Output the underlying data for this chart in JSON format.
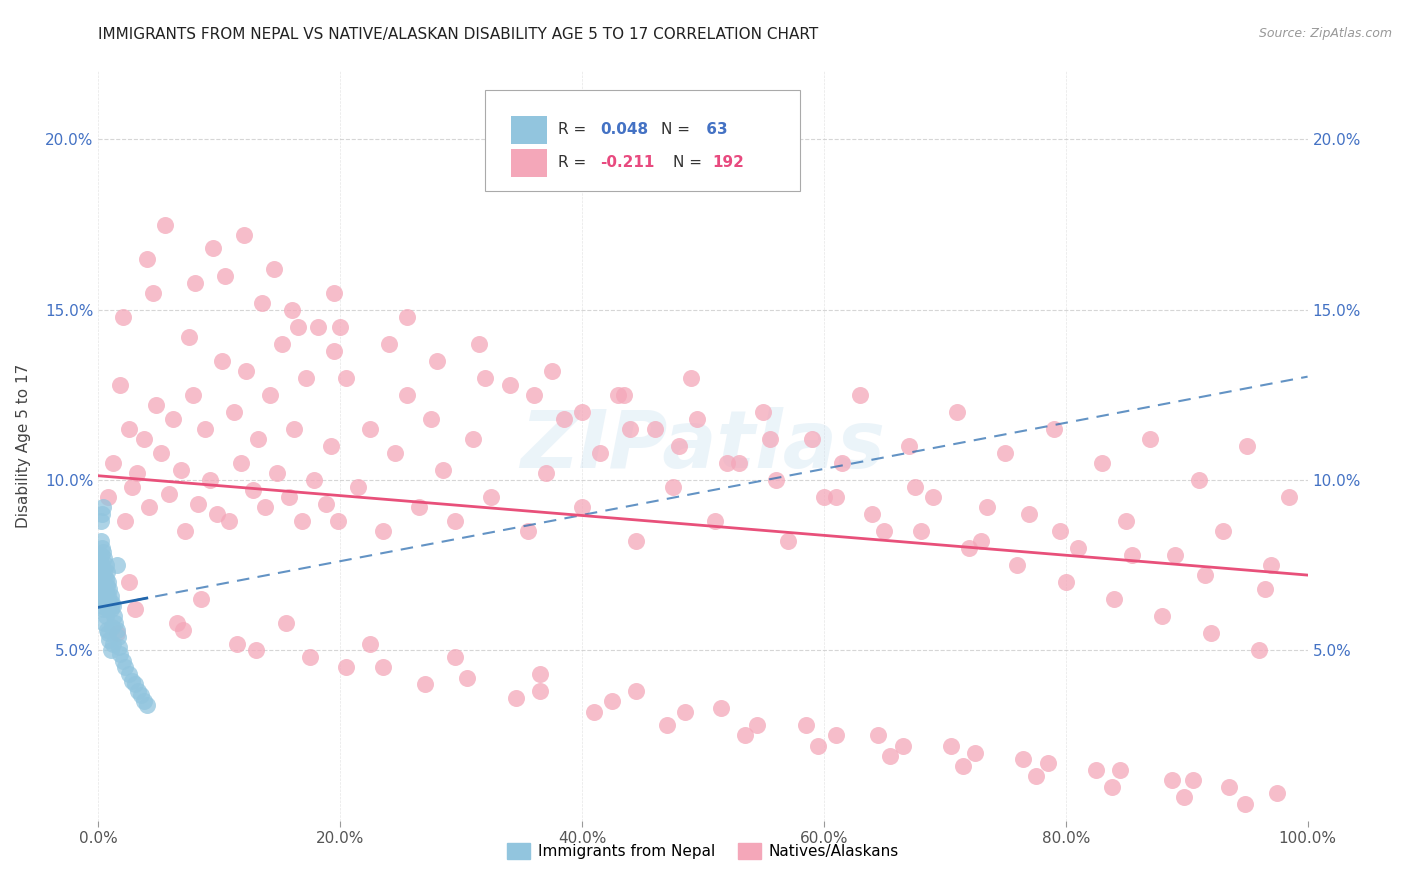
{
  "title": "IMMIGRANTS FROM NEPAL VS NATIVE/ALASKAN DISABILITY AGE 5 TO 17 CORRELATION CHART",
  "source": "Source: ZipAtlas.com",
  "ylabel": "Disability Age 5 to 17",
  "xlim": [
    0,
    1.0
  ],
  "ylim": [
    0,
    0.22
  ],
  "xticks": [
    0.0,
    0.2,
    0.4,
    0.6,
    0.8,
    1.0
  ],
  "yticks": [
    0.05,
    0.1,
    0.15,
    0.2
  ],
  "ytick_labels": [
    "5.0%",
    "10.0%",
    "15.0%",
    "20.0%"
  ],
  "xtick_labels": [
    "0.0%",
    "20.0%",
    "40.0%",
    "60.0%",
    "80.0%",
    "100.0%"
  ],
  "nepal_color": "#92C5DE",
  "native_color": "#F4A7B9",
  "nepal_line_color": "#2166AC",
  "native_line_color": "#E8507A",
  "background_color": "#FFFFFF",
  "grid_color": "#CCCCCC",
  "watermark": "ZIPatlas",
  "nepal_x": [
    0.001,
    0.001,
    0.001,
    0.002,
    0.002,
    0.002,
    0.002,
    0.003,
    0.003,
    0.003,
    0.003,
    0.003,
    0.004,
    0.004,
    0.004,
    0.004,
    0.004,
    0.005,
    0.005,
    0.005,
    0.005,
    0.005,
    0.006,
    0.006,
    0.006,
    0.006,
    0.007,
    0.007,
    0.007,
    0.007,
    0.008,
    0.008,
    0.008,
    0.008,
    0.009,
    0.009,
    0.009,
    0.01,
    0.01,
    0.01,
    0.011,
    0.011,
    0.012,
    0.012,
    0.013,
    0.014,
    0.015,
    0.016,
    0.017,
    0.018,
    0.02,
    0.022,
    0.025,
    0.028,
    0.03,
    0.033,
    0.035,
    0.038,
    0.04,
    0.002,
    0.003,
    0.004,
    0.015
  ],
  "nepal_y": [
    0.076,
    0.072,
    0.068,
    0.082,
    0.078,
    0.074,
    0.07,
    0.08,
    0.075,
    0.071,
    0.067,
    0.063,
    0.079,
    0.074,
    0.07,
    0.066,
    0.062,
    0.077,
    0.073,
    0.069,
    0.065,
    0.058,
    0.075,
    0.071,
    0.067,
    0.06,
    0.073,
    0.069,
    0.065,
    0.056,
    0.07,
    0.066,
    0.062,
    0.055,
    0.068,
    0.064,
    0.053,
    0.066,
    0.062,
    0.05,
    0.064,
    0.057,
    0.063,
    0.052,
    0.06,
    0.058,
    0.056,
    0.054,
    0.051,
    0.049,
    0.047,
    0.045,
    0.043,
    0.041,
    0.04,
    0.038,
    0.037,
    0.035,
    0.034,
    0.088,
    0.09,
    0.092,
    0.075
  ],
  "native_x": [
    0.008,
    0.012,
    0.018,
    0.022,
    0.025,
    0.028,
    0.032,
    0.038,
    0.042,
    0.048,
    0.052,
    0.058,
    0.062,
    0.068,
    0.072,
    0.078,
    0.082,
    0.088,
    0.092,
    0.098,
    0.102,
    0.108,
    0.112,
    0.118,
    0.122,
    0.128,
    0.132,
    0.138,
    0.142,
    0.148,
    0.152,
    0.158,
    0.162,
    0.168,
    0.172,
    0.178,
    0.182,
    0.188,
    0.192,
    0.198,
    0.205,
    0.215,
    0.225,
    0.235,
    0.245,
    0.255,
    0.265,
    0.275,
    0.285,
    0.295,
    0.31,
    0.325,
    0.34,
    0.355,
    0.37,
    0.385,
    0.4,
    0.415,
    0.43,
    0.445,
    0.46,
    0.475,
    0.49,
    0.51,
    0.53,
    0.55,
    0.57,
    0.59,
    0.61,
    0.63,
    0.65,
    0.67,
    0.69,
    0.71,
    0.73,
    0.75,
    0.77,
    0.79,
    0.81,
    0.83,
    0.85,
    0.87,
    0.89,
    0.91,
    0.93,
    0.95,
    0.97,
    0.985,
    0.02,
    0.045,
    0.075,
    0.105,
    0.135,
    0.165,
    0.195,
    0.04,
    0.08,
    0.12,
    0.16,
    0.2,
    0.24,
    0.28,
    0.32,
    0.36,
    0.4,
    0.44,
    0.48,
    0.52,
    0.56,
    0.6,
    0.64,
    0.68,
    0.72,
    0.76,
    0.8,
    0.84,
    0.88,
    0.92,
    0.96,
    0.055,
    0.095,
    0.145,
    0.195,
    0.255,
    0.315,
    0.375,
    0.435,
    0.495,
    0.555,
    0.615,
    0.675,
    0.735,
    0.795,
    0.855,
    0.915,
    0.965,
    0.015,
    0.065,
    0.115,
    0.175,
    0.235,
    0.305,
    0.365,
    0.425,
    0.485,
    0.545,
    0.61,
    0.665,
    0.725,
    0.785,
    0.845,
    0.905,
    0.03,
    0.07,
    0.13,
    0.205,
    0.27,
    0.345,
    0.41,
    0.47,
    0.535,
    0.595,
    0.655,
    0.715,
    0.775,
    0.838,
    0.898,
    0.948,
    0.025,
    0.085,
    0.155,
    0.225,
    0.295,
    0.365,
    0.445,
    0.515,
    0.585,
    0.645,
    0.705,
    0.765,
    0.825,
    0.888,
    0.935,
    0.975
  ],
  "native_y": [
    0.095,
    0.105,
    0.128,
    0.088,
    0.115,
    0.098,
    0.102,
    0.112,
    0.092,
    0.122,
    0.108,
    0.096,
    0.118,
    0.103,
    0.085,
    0.125,
    0.093,
    0.115,
    0.1,
    0.09,
    0.135,
    0.088,
    0.12,
    0.105,
    0.132,
    0.097,
    0.112,
    0.092,
    0.125,
    0.102,
    0.14,
    0.095,
    0.115,
    0.088,
    0.13,
    0.1,
    0.145,
    0.093,
    0.11,
    0.088,
    0.13,
    0.098,
    0.115,
    0.085,
    0.108,
    0.125,
    0.092,
    0.118,
    0.103,
    0.088,
    0.112,
    0.095,
    0.128,
    0.085,
    0.102,
    0.118,
    0.092,
    0.108,
    0.125,
    0.082,
    0.115,
    0.098,
    0.13,
    0.088,
    0.105,
    0.12,
    0.082,
    0.112,
    0.095,
    0.125,
    0.085,
    0.11,
    0.095,
    0.12,
    0.082,
    0.108,
    0.09,
    0.115,
    0.08,
    0.105,
    0.088,
    0.112,
    0.078,
    0.1,
    0.085,
    0.11,
    0.075,
    0.095,
    0.148,
    0.155,
    0.142,
    0.16,
    0.152,
    0.145,
    0.138,
    0.165,
    0.158,
    0.172,
    0.15,
    0.145,
    0.14,
    0.135,
    0.13,
    0.125,
    0.12,
    0.115,
    0.11,
    0.105,
    0.1,
    0.095,
    0.09,
    0.085,
    0.08,
    0.075,
    0.07,
    0.065,
    0.06,
    0.055,
    0.05,
    0.175,
    0.168,
    0.162,
    0.155,
    0.148,
    0.14,
    0.132,
    0.125,
    0.118,
    0.112,
    0.105,
    0.098,
    0.092,
    0.085,
    0.078,
    0.072,
    0.068,
    0.055,
    0.058,
    0.052,
    0.048,
    0.045,
    0.042,
    0.038,
    0.035,
    0.032,
    0.028,
    0.025,
    0.022,
    0.02,
    0.017,
    0.015,
    0.012,
    0.062,
    0.056,
    0.05,
    0.045,
    0.04,
    0.036,
    0.032,
    0.028,
    0.025,
    0.022,
    0.019,
    0.016,
    0.013,
    0.01,
    0.007,
    0.005,
    0.07,
    0.065,
    0.058,
    0.052,
    0.048,
    0.043,
    0.038,
    0.033,
    0.028,
    0.025,
    0.022,
    0.018,
    0.015,
    0.012,
    0.01,
    0.008
  ]
}
